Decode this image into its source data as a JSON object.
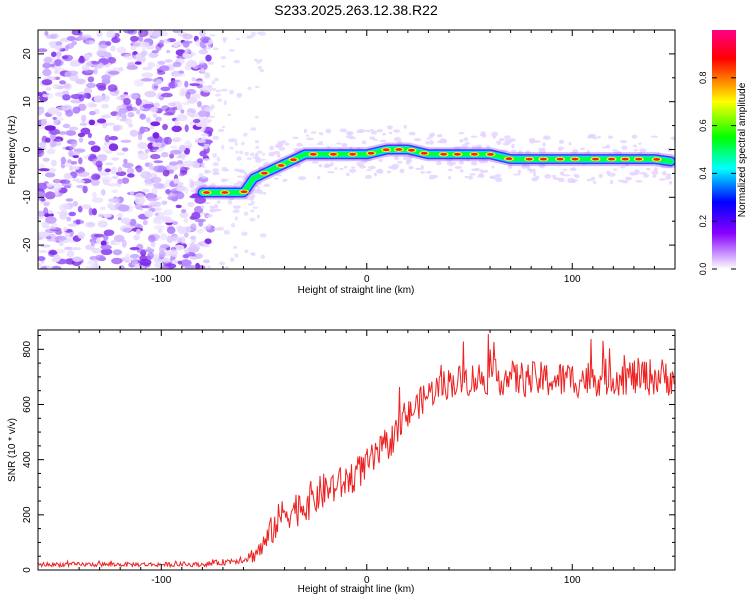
{
  "title": "S233.2025.263.12.38.R22",
  "chart_data": [
    {
      "type": "heatmap",
      "name": "spectrogram",
      "xlabel": "Height of straight line (km)",
      "ylabel": "Frequency (Hz)",
      "xlim": [
        -160,
        150
      ],
      "ylim": [
        -25,
        25
      ],
      "xticks": [
        -100,
        0,
        100
      ],
      "yticks": [
        -20,
        -10,
        0,
        10,
        20
      ],
      "colorbar": {
        "label": "Normalized spectral amplitude",
        "range": [
          0,
          1
        ],
        "ticks": [
          0.0,
          0.2,
          0.4,
          0.6,
          0.8
        ],
        "colors": [
          "#ffffff",
          "#cc99ff",
          "#8800ff",
          "#0000ff",
          "#00ffff",
          "#00ff00",
          "#ffff00",
          "#ff0000",
          "#ff0088"
        ]
      },
      "noise_region_x": [
        -160,
        -80
      ],
      "signal_track": [
        {
          "x": -80,
          "y": -9
        },
        {
          "x": -70,
          "y": -9
        },
        {
          "x": -60,
          "y": -9
        },
        {
          "x": -55,
          "y": -6
        },
        {
          "x": -50,
          "y": -5
        },
        {
          "x": -45,
          "y": -4
        },
        {
          "x": -40,
          "y": -3
        },
        {
          "x": -35,
          "y": -2
        },
        {
          "x": -30,
          "y": -1
        },
        {
          "x": -20,
          "y": -1
        },
        {
          "x": -10,
          "y": -1
        },
        {
          "x": 0,
          "y": -1
        },
        {
          "x": 10,
          "y": 0
        },
        {
          "x": 20,
          "y": 0
        },
        {
          "x": 30,
          "y": -1
        },
        {
          "x": 40,
          "y": -1
        },
        {
          "x": 50,
          "y": -1
        },
        {
          "x": 60,
          "y": -1
        },
        {
          "x": 70,
          "y": -2
        },
        {
          "x": 80,
          "y": -2
        },
        {
          "x": 90,
          "y": -2
        },
        {
          "x": 100,
          "y": -2
        },
        {
          "x": 110,
          "y": -2
        },
        {
          "x": 120,
          "y": -2
        },
        {
          "x": 130,
          "y": -2
        },
        {
          "x": 140,
          "y": -2
        },
        {
          "x": 148,
          "y": -2.5
        }
      ]
    },
    {
      "type": "line",
      "name": "snr",
      "xlabel": "Height of straight line (km)",
      "ylabel": "SNR (10 * v/v)",
      "xlim": [
        -160,
        150
      ],
      "ylim": [
        0,
        870
      ],
      "xticks": [
        -100,
        0,
        100
      ],
      "yticks": [
        0,
        200,
        400,
        600,
        800
      ],
      "color": "#ee2222",
      "trend": [
        {
          "x": -160,
          "y": 20
        },
        {
          "x": -100,
          "y": 20
        },
        {
          "x": -80,
          "y": 20
        },
        {
          "x": -70,
          "y": 28
        },
        {
          "x": -60,
          "y": 40
        },
        {
          "x": -55,
          "y": 55
        },
        {
          "x": -50,
          "y": 90
        },
        {
          "x": -45,
          "y": 160
        },
        {
          "x": -40,
          "y": 210
        },
        {
          "x": -35,
          "y": 220
        },
        {
          "x": -30,
          "y": 240
        },
        {
          "x": -20,
          "y": 290
        },
        {
          "x": -10,
          "y": 320
        },
        {
          "x": 0,
          "y": 380
        },
        {
          "x": 10,
          "y": 450
        },
        {
          "x": 20,
          "y": 560
        },
        {
          "x": 30,
          "y": 640
        },
        {
          "x": 40,
          "y": 680
        },
        {
          "x": 60,
          "y": 700
        },
        {
          "x": 80,
          "y": 690
        },
        {
          "x": 100,
          "y": 690
        },
        {
          "x": 120,
          "y": 700
        },
        {
          "x": 150,
          "y": 700
        }
      ],
      "noise_amplitude": [
        {
          "x": -160,
          "y": 8
        },
        {
          "x": -80,
          "y": 8
        },
        {
          "x": -60,
          "y": 15
        },
        {
          "x": -45,
          "y": 60
        },
        {
          "x": -30,
          "y": 70
        },
        {
          "x": 0,
          "y": 60
        },
        {
          "x": 30,
          "y": 55
        },
        {
          "x": 60,
          "y": 65
        },
        {
          "x": 150,
          "y": 70
        }
      ]
    }
  ]
}
